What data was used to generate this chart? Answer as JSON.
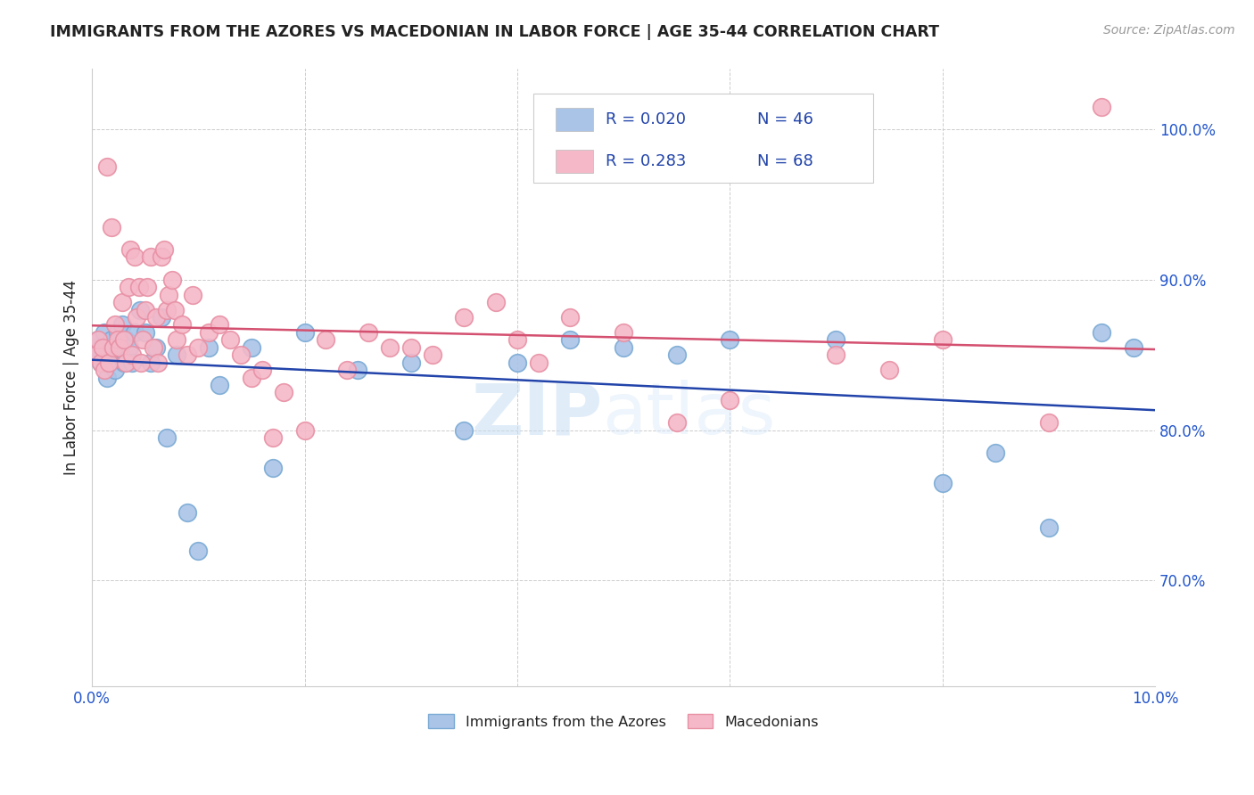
{
  "title": "IMMIGRANTS FROM THE AZORES VS MACEDONIAN IN LABOR FORCE | AGE 35-44 CORRELATION CHART",
  "source": "Source: ZipAtlas.com",
  "ylabel": "In Labor Force | Age 35-44",
  "xlim": [
    0.0,
    10.0
  ],
  "ylim": [
    63.0,
    104.0
  ],
  "yticks": [
    70.0,
    80.0,
    90.0,
    100.0
  ],
  "ytick_labels": [
    "70.0%",
    "80.0%",
    "90.0%",
    "100.0%"
  ],
  "series": [
    {
      "name": "Immigrants from the Azores",
      "R": "0.020",
      "N": "46",
      "color": "#aac4e8",
      "line_color": "#2244aa",
      "marker_edge_color": "#7aaad4",
      "x": [
        0.04,
        0.06,
        0.08,
        0.1,
        0.12,
        0.14,
        0.16,
        0.18,
        0.2,
        0.22,
        0.24,
        0.26,
        0.28,
        0.3,
        0.32,
        0.35,
        0.38,
        0.4,
        0.45,
        0.5,
        0.55,
        0.6,
        0.65,
        0.7,
        0.8,
        0.9,
        1.0,
        1.1,
        1.2,
        1.5,
        1.7,
        2.0,
        2.5,
        3.0,
        3.5,
        4.0,
        4.5,
        5.0,
        5.5,
        6.0,
        7.0,
        8.0,
        8.5,
        9.0,
        9.5,
        9.8
      ],
      "y": [
        85.5,
        86.0,
        84.5,
        85.0,
        86.5,
        83.5,
        85.0,
        86.0,
        85.5,
        84.0,
        86.5,
        85.5,
        87.0,
        84.5,
        86.0,
        85.5,
        84.5,
        86.5,
        88.0,
        86.5,
        84.5,
        85.5,
        87.5,
        79.5,
        85.0,
        74.5,
        72.0,
        85.5,
        83.0,
        85.5,
        77.5,
        86.5,
        84.0,
        84.5,
        80.0,
        84.5,
        86.0,
        85.5,
        85.0,
        86.0,
        86.0,
        76.5,
        78.5,
        73.5,
        86.5,
        85.5
      ]
    },
    {
      "name": "Macedonians",
      "R": "0.283",
      "N": "68",
      "color": "#f4b8c8",
      "line_color": "#d45070",
      "marker_edge_color": "#e890a4",
      "x": [
        0.04,
        0.06,
        0.08,
        0.1,
        0.12,
        0.14,
        0.16,
        0.18,
        0.2,
        0.22,
        0.24,
        0.26,
        0.28,
        0.3,
        0.32,
        0.34,
        0.36,
        0.38,
        0.4,
        0.42,
        0.44,
        0.46,
        0.48,
        0.5,
        0.52,
        0.55,
        0.58,
        0.6,
        0.62,
        0.65,
        0.68,
        0.7,
        0.72,
        0.75,
        0.78,
        0.8,
        0.85,
        0.9,
        0.95,
        1.0,
        1.1,
        1.2,
        1.3,
        1.4,
        1.5,
        1.6,
        1.7,
        1.8,
        2.0,
        2.2,
        2.4,
        2.6,
        2.8,
        3.0,
        3.2,
        3.5,
        3.8,
        4.0,
        4.2,
        4.5,
        5.0,
        5.5,
        6.0,
        7.0,
        7.5,
        8.0,
        9.0,
        9.5
      ],
      "y": [
        85.0,
        86.0,
        84.5,
        85.5,
        84.0,
        97.5,
        84.5,
        93.5,
        85.5,
        87.0,
        86.0,
        85.5,
        88.5,
        86.0,
        84.5,
        89.5,
        92.0,
        85.0,
        91.5,
        87.5,
        89.5,
        84.5,
        86.0,
        88.0,
        89.5,
        91.5,
        85.5,
        87.5,
        84.5,
        91.5,
        92.0,
        88.0,
        89.0,
        90.0,
        88.0,
        86.0,
        87.0,
        85.0,
        89.0,
        85.5,
        86.5,
        87.0,
        86.0,
        85.0,
        83.5,
        84.0,
        79.5,
        82.5,
        80.0,
        86.0,
        84.0,
        86.5,
        85.5,
        85.5,
        85.0,
        87.5,
        88.5,
        86.0,
        84.5,
        87.5,
        86.5,
        80.5,
        82.0,
        85.0,
        84.0,
        86.0,
        80.5,
        101.5
      ]
    }
  ],
  "legend": {
    "R1": "0.020",
    "N1": "46",
    "R2": "0.283",
    "N2": "68",
    "color1": "#aac4e8",
    "color2": "#f4b8c8",
    "text_color_blue": "#2244aa",
    "text_color_dark": "#333333"
  },
  "watermark": "ZIPatlas",
  "background_color": "#ffffff",
  "grid_color": "#cccccc",
  "title_color": "#222222",
  "axis_color": "#2255cc",
  "figsize": [
    14.06,
    8.92
  ],
  "dpi": 100
}
